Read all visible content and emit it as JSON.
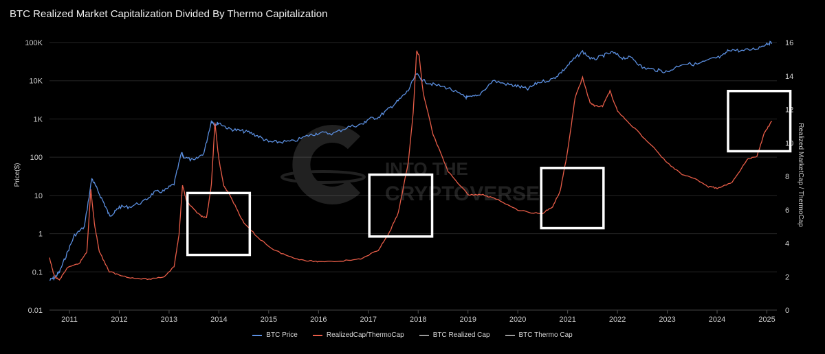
{
  "chart_data": {
    "type": "line",
    "title": "BTC Realized Market Capitalization Divided By Thermo Capitalization",
    "ylabel_left": "Price($)",
    "ylabel_right": "Realized MarketCap / ThermoCap",
    "y_left_scale": "log",
    "y_left_ticks": [
      "100K",
      "10K",
      "1K",
      "100",
      "10",
      "1",
      "0.1",
      "0.01"
    ],
    "y_left_range": [
      0.01,
      100000
    ],
    "y_right_ticks": [
      "16",
      "14",
      "12",
      "10",
      "8",
      "6",
      "4",
      "2",
      "0"
    ],
    "y_right_range": [
      0,
      16
    ],
    "x_ticks": [
      "2011",
      "2012",
      "2013",
      "2014",
      "2015",
      "2016",
      "2017",
      "2018",
      "2019",
      "2020",
      "2021",
      "2022",
      "2023",
      "2024",
      "2025"
    ],
    "x_range": [
      2010.6,
      2025.2
    ],
    "grid": true,
    "legend": "bottom",
    "series": [
      {
        "name": "BTC Price",
        "axis": "left",
        "color": "#5b8fe0",
        "x": [
          2010.6,
          2010.7,
          2010.8,
          2010.95,
          2011.1,
          2011.3,
          2011.45,
          2011.55,
          2011.7,
          2011.8,
          2011.9,
          2012.0,
          2012.2,
          2012.5,
          2012.7,
          2012.9,
          2013.1,
          2013.25,
          2013.3,
          2013.5,
          2013.7,
          2013.85,
          2013.92,
          2014.0,
          2014.2,
          2014.4,
          2014.6,
          2014.8,
          2015.0,
          2015.2,
          2015.5,
          2015.8,
          2016.0,
          2016.3,
          2016.6,
          2016.9,
          2017.0,
          2017.2,
          2017.4,
          2017.6,
          2017.8,
          2017.96,
          2018.1,
          2018.3,
          2018.6,
          2018.9,
          2019.0,
          2019.2,
          2019.5,
          2019.8,
          2020.0,
          2020.2,
          2020.4,
          2020.7,
          2020.9,
          2021.1,
          2021.3,
          2021.5,
          2021.7,
          2021.9,
          2022.1,
          2022.3,
          2022.5,
          2022.8,
          2023.0,
          2023.3,
          2023.6,
          2023.9,
          2024.1,
          2024.25,
          2024.5,
          2024.8,
          2025.0,
          2025.1
        ],
        "y": [
          0.06,
          0.07,
          0.1,
          0.3,
          0.9,
          1.5,
          28,
          15,
          6,
          3,
          3.5,
          5,
          5,
          7,
          12,
          13,
          20,
          130,
          100,
          80,
          130,
          900,
          700,
          800,
          550,
          500,
          450,
          350,
          250,
          250,
          260,
          370,
          430,
          420,
          620,
          740,
          1000,
          1100,
          1800,
          3000,
          5500,
          15000,
          10000,
          8000,
          6500,
          4000,
          3600,
          4000,
          10000,
          8000,
          7200,
          6000,
          9000,
          11000,
          18000,
          34000,
          58000,
          35000,
          45000,
          55000,
          40000,
          40000,
          22000,
          19000,
          17000,
          28000,
          27000,
          37000,
          43000,
          66000,
          60000,
          70000,
          95000,
          98000
        ]
      },
      {
        "name": "RealizedCap/ThermoCap",
        "axis": "right",
        "color": "#e85d48",
        "x": [
          2010.6,
          2010.7,
          2010.8,
          2010.95,
          2011.2,
          2011.35,
          2011.43,
          2011.5,
          2011.6,
          2011.8,
          2012.0,
          2012.3,
          2012.6,
          2012.9,
          2013.1,
          2013.2,
          2013.27,
          2013.35,
          2013.5,
          2013.65,
          2013.75,
          2013.85,
          2013.92,
          2014.0,
          2014.1,
          2014.2,
          2014.3,
          2014.5,
          2014.8,
          2015.1,
          2015.5,
          2015.8,
          2016.0,
          2016.5,
          2016.9,
          2017.2,
          2017.4,
          2017.6,
          2017.8,
          2017.9,
          2017.97,
          2018.02,
          2018.1,
          2018.3,
          2018.6,
          2019.0,
          2019.3,
          2019.6,
          2020.0,
          2020.3,
          2020.5,
          2020.7,
          2020.85,
          2021.0,
          2021.15,
          2021.3,
          2021.45,
          2021.55,
          2021.7,
          2021.85,
          2022.0,
          2022.3,
          2022.7,
          2023.0,
          2023.3,
          2023.6,
          2023.8,
          2024.0,
          2024.3,
          2024.6,
          2024.8,
          2024.95,
          2025.1
        ],
        "y": [
          3.1,
          2.0,
          1.8,
          2.5,
          2.8,
          3.5,
          7.2,
          5.2,
          3.5,
          2.3,
          2.1,
          1.9,
          1.85,
          2.0,
          2.6,
          4.5,
          7.5,
          6.5,
          6.0,
          5.6,
          5.5,
          7.5,
          11.2,
          9.0,
          7.4,
          7.0,
          6.4,
          5.2,
          4.3,
          3.6,
          3.1,
          2.95,
          2.9,
          2.95,
          3.1,
          3.6,
          4.5,
          5.8,
          8.8,
          11.8,
          15.5,
          15.2,
          13.0,
          10.5,
          8.3,
          6.9,
          6.9,
          6.6,
          6.0,
          5.8,
          5.8,
          6.2,
          7.1,
          9.5,
          12.7,
          13.9,
          12.4,
          12.2,
          12.2,
          13.1,
          11.9,
          11.0,
          9.8,
          8.8,
          8.1,
          7.8,
          7.4,
          7.3,
          7.6,
          9.0,
          9.2,
          10.6,
          11.3
        ]
      },
      {
        "name": "BTC Realized Cap",
        "axis": "none",
        "color": "#9a9a9a",
        "x": [],
        "y": []
      },
      {
        "name": "BTC Thermo Cap",
        "axis": "none",
        "color": "#9a9a9a",
        "x": [],
        "y": []
      }
    ],
    "annotations": [
      {
        "label": "",
        "x0": 2013.37,
        "x1": 2014.62,
        "y0": 3.3,
        "y1": 7.0
      },
      {
        "label": "",
        "x0": 2017.02,
        "x1": 2018.28,
        "y0": 4.4,
        "y1": 8.1
      },
      {
        "label": "",
        "x0": 2020.47,
        "x1": 2021.72,
        "y0": 4.9,
        "y1": 8.5
      },
      {
        "label": "",
        "x0": 2024.22,
        "x1": 2025.47,
        "y0": 9.5,
        "y1": 13.1
      }
    ],
    "watermark": [
      "INTO THE",
      "CRYPTOVERSE"
    ]
  }
}
